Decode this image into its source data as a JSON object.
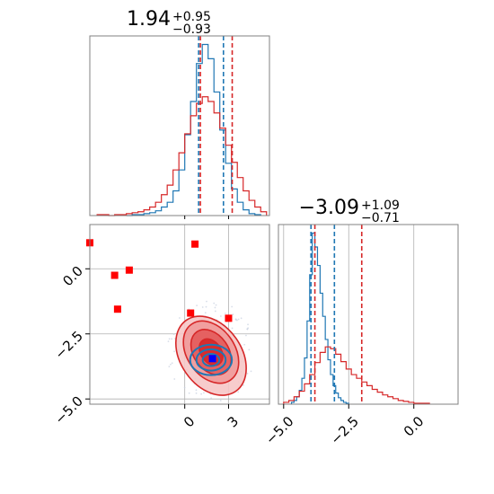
{
  "chart_data": [
    {
      "type": "histogram",
      "panel": "top-left",
      "title": {
        "median": "1.94",
        "plus": "+0.95",
        "minus": "−0.93"
      },
      "xlim": [
        -6.5,
        5.8
      ],
      "grid": true,
      "series": [
        {
          "color": "#1f77b4",
          "bins_edges": [
            -4.0,
            -3.6,
            -3.2,
            -2.8,
            -2.4,
            -2.0,
            -1.6,
            -1.2,
            -0.8,
            -0.4,
            0.0,
            0.4,
            0.8,
            1.2,
            1.6,
            2.0,
            2.4,
            2.8,
            3.2,
            3.6,
            4.0,
            4.4,
            4.8,
            5.2
          ],
          "counts": [
            0,
            1,
            1,
            2,
            3,
            5,
            9,
            14,
            26,
            48,
            85,
            120,
            160,
            180,
            165,
            130,
            90,
            55,
            28,
            14,
            6,
            2,
            1
          ]
        },
        {
          "color": "#d62728",
          "bins_edges": [
            -6.0,
            -5.6,
            -5.2,
            -4.8,
            -4.4,
            -4.0,
            -3.6,
            -3.2,
            -2.8,
            -2.4,
            -2.0,
            -1.6,
            -1.2,
            -0.8,
            -0.4,
            0.0,
            0.4,
            0.8,
            1.2,
            1.6,
            2.0,
            2.4,
            2.8,
            3.2,
            3.6,
            4.0,
            4.4,
            4.8,
            5.2,
            5.6
          ],
          "counts": [
            1,
            1,
            0,
            1,
            1,
            2,
            3,
            4,
            6,
            9,
            14,
            22,
            32,
            48,
            66,
            86,
            105,
            118,
            125,
            120,
            108,
            92,
            74,
            56,
            40,
            26,
            16,
            9,
            4
          ]
        }
      ],
      "quantiles": [
        {
          "color": "#1f77b4",
          "values": [
            0.95,
            2.65
          ]
        },
        {
          "color": "#d62728",
          "values": [
            1.07,
            3.25
          ]
        }
      ]
    },
    {
      "type": "histogram",
      "panel": "bottom-right",
      "title": {
        "median": "−3.09",
        "plus": "+1.09",
        "minus": "−0.71"
      },
      "xlim": [
        -5.2,
        1.7
      ],
      "xticks": [
        -5.0,
        -2.5,
        0.0
      ],
      "xtick_labels": [
        "−5.0",
        "−2.5",
        "0.0"
      ],
      "grid": true,
      "series": [
        {
          "color": "#1f77b4",
          "bins_edges": [
            -4.7,
            -4.6,
            -4.5,
            -4.4,
            -4.3,
            -4.2,
            -4.1,
            -4.0,
            -3.9,
            -3.8,
            -3.7,
            -3.6,
            -3.5,
            -3.4,
            -3.3,
            -3.2,
            -3.1,
            -3.0,
            -2.9,
            -2.8,
            -2.7,
            -2.6,
            -2.5
          ],
          "counts": [
            2,
            4,
            8,
            15,
            28,
            50,
            90,
            140,
            185,
            170,
            150,
            120,
            95,
            70,
            48,
            32,
            20,
            12,
            7,
            4,
            2,
            1
          ]
        },
        {
          "color": "#d62728",
          "bins_edges": [
            -5.0,
            -4.8,
            -4.6,
            -4.4,
            -4.2,
            -4.0,
            -3.8,
            -3.6,
            -3.4,
            -3.2,
            -3.0,
            -2.8,
            -2.6,
            -2.4,
            -2.2,
            -2.0,
            -1.8,
            -1.6,
            -1.4,
            -1.2,
            -1.0,
            -0.8,
            -0.6,
            -0.4,
            -0.2,
            0.0,
            0.2,
            0.4,
            0.6
          ],
          "counts": [
            2,
            4,
            8,
            14,
            22,
            32,
            45,
            56,
            62,
            60,
            54,
            46,
            38,
            32,
            28,
            24,
            20,
            16,
            13,
            10,
            8,
            6,
            4,
            3,
            2,
            1,
            1,
            1
          ]
        }
      ],
      "quantiles": [
        {
          "color": "#1f77b4",
          "values": [
            -3.95,
            -3.05
          ]
        },
        {
          "color": "#d62728",
          "values": [
            -3.8,
            -2.0
          ]
        }
      ]
    },
    {
      "type": "contour",
      "panel": "bottom-left",
      "xlim": [
        -6.5,
        5.8
      ],
      "ylim": [
        -5.2,
        1.7
      ],
      "xticks": [
        0,
        3
      ],
      "xtick_labels": [
        "0",
        "3"
      ],
      "yticks": [
        -5.0,
        -2.5,
        0.0
      ],
      "ytick_labels": [
        "−5.0",
        "−2.5",
        "0.0"
      ],
      "grid": true,
      "series": [
        {
          "color": "#d62728",
          "center": [
            1.8,
            -3.2
          ],
          "spread": [
            1.6,
            1.1
          ],
          "rotation": 35,
          "filled": true
        },
        {
          "color": "#1f77b4",
          "center": [
            1.8,
            -3.5
          ],
          "spread": [
            1.3,
            0.45
          ],
          "rotation": 0,
          "filled": false
        }
      ],
      "markers": [
        {
          "color": "#ff0000",
          "x": -6.5,
          "y": 1.0
        },
        {
          "color": "#ff0000",
          "x": -4.8,
          "y": -0.25
        },
        {
          "color": "#ff0000",
          "x": -3.8,
          "y": -0.05
        },
        {
          "color": "#ff0000",
          "x": -4.6,
          "y": -1.55
        },
        {
          "color": "#ff0000",
          "x": 0.7,
          "y": 0.95
        },
        {
          "color": "#ff0000",
          "x": 0.4,
          "y": -1.7
        },
        {
          "color": "#ff0000",
          "x": 3.0,
          "y": -1.9
        },
        {
          "color": "#0000ff",
          "x": 1.9,
          "y": -3.45
        }
      ]
    }
  ]
}
